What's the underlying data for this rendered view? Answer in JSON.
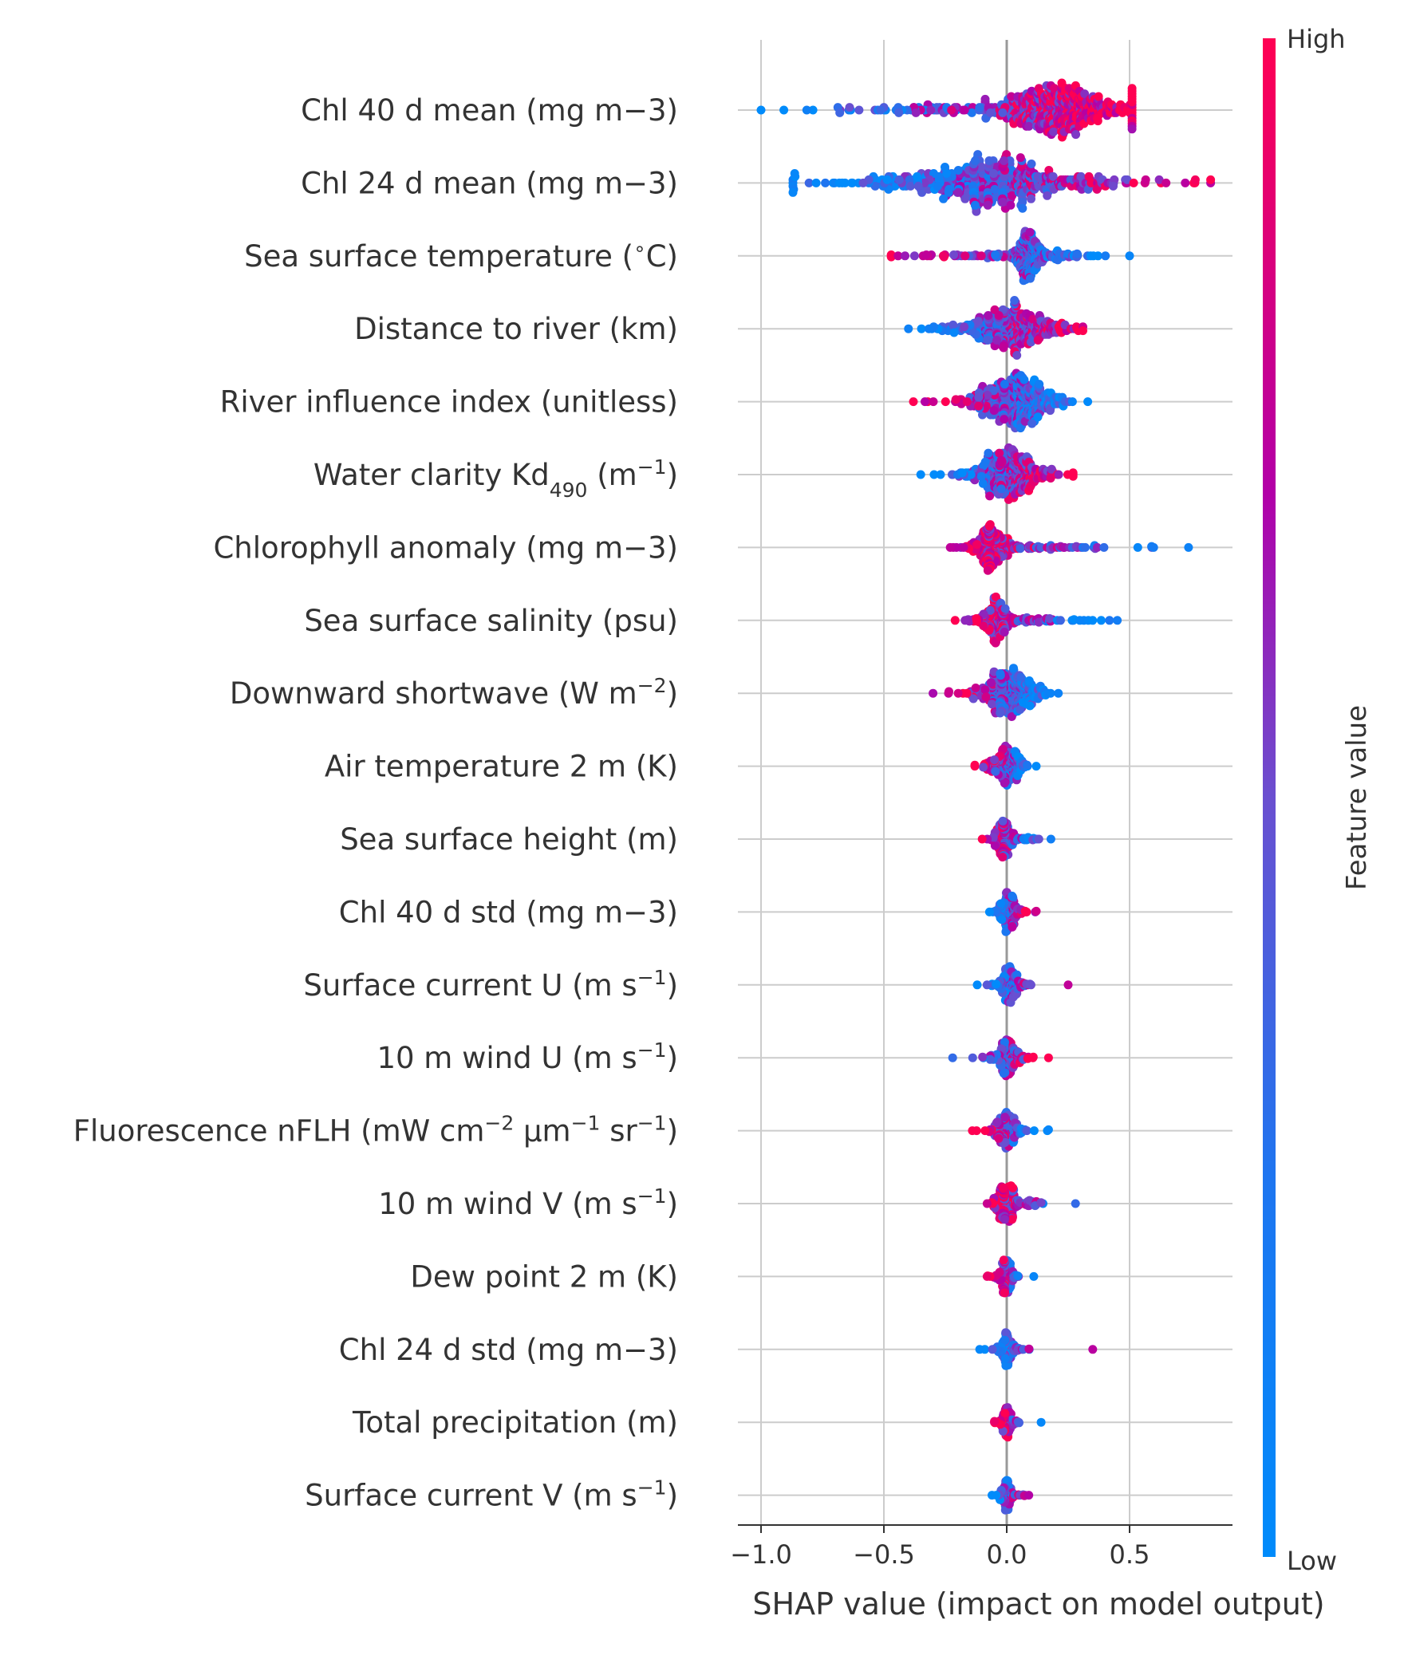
{
  "chart_data": {
    "type": "scatter",
    "subtype": "shap-beeswarm-summary",
    "xlabel": "SHAP value (impact on model output)",
    "xlim": [
      -1.1,
      0.92
    ],
    "xticks": [
      {
        "value": -1.0,
        "label": "−1.0"
      },
      {
        "value": -0.5,
        "label": "−0.5"
      },
      {
        "value": 0.0,
        "label": "0.0"
      },
      {
        "value": 0.5,
        "label": "0.5"
      }
    ],
    "grid": "vertical gridlines",
    "colorbar": {
      "title": "Feature value",
      "high_label": "High",
      "low_label": "Low",
      "low_color": "#008bfb",
      "high_color": "#ff0052"
    },
    "features": [
      {
        "label_parts": [
          {
            "t": "Chl 40 d mean (mg m−3)"
          }
        ],
        "min": -1.0,
        "max": 0.51,
        "peak": 0.18,
        "spread": 0.11,
        "neg_tail": 0.45,
        "pos_tail": 0.22,
        "low_side": "negative",
        "n": 520,
        "halfwidth": 0.85
      },
      {
        "label_parts": [
          {
            "t": "Chl 24 d mean (mg m−3)"
          }
        ],
        "min": -0.87,
        "max": 0.83,
        "peak": -0.07,
        "spread": 0.16,
        "neg_tail": 0.35,
        "pos_tail": 0.4,
        "low_side": "negative",
        "n": 520,
        "halfwidth": 0.9
      },
      {
        "label_parts": [
          {
            "t": "Sea surface temperature ("
          },
          {
            "t": "∘",
            "sup": true
          },
          {
            "t": "C)"
          }
        ],
        "min": -0.47,
        "max": 0.5,
        "peak": 0.09,
        "spread": 0.03,
        "neg_tail": 0.25,
        "pos_tail": 0.12,
        "low_side": "positive",
        "n": 380,
        "halfwidth": 0.75
      },
      {
        "label_parts": [
          {
            "t": "Distance to river (km)"
          }
        ],
        "min": -0.4,
        "max": 0.31,
        "peak": 0.02,
        "spread": 0.1,
        "neg_tail": 0.15,
        "pos_tail": 0.12,
        "low_side": "negative",
        "n": 430,
        "halfwidth": 0.85
      },
      {
        "label_parts": [
          {
            "t": "River influence index (unitless)"
          }
        ],
        "min": -0.38,
        "max": 0.33,
        "peak": 0.03,
        "spread": 0.08,
        "neg_tail": 0.13,
        "pos_tail": 0.1,
        "low_side": "positive",
        "n": 420,
        "halfwidth": 0.85
      },
      {
        "label_parts": [
          {
            "t": "Water clarity Kd"
          },
          {
            "t": "490",
            "sub": true
          },
          {
            "t": " (m"
          },
          {
            "t": "−1",
            "sup": true
          },
          {
            "t": ")"
          }
        ],
        "min": -0.35,
        "max": 0.27,
        "peak": 0.0,
        "spread": 0.07,
        "neg_tail": 0.12,
        "pos_tail": 0.1,
        "low_side": "negative",
        "n": 420,
        "halfwidth": 0.8
      },
      {
        "label_parts": [
          {
            "t": "Chlorophyll anomaly (mg m−3)"
          }
        ],
        "min": -0.23,
        "max": 0.74,
        "peak": -0.05,
        "spread": 0.04,
        "neg_tail": 0.06,
        "pos_tail": 0.28,
        "low_side": "positive",
        "n": 380,
        "halfwidth": 0.7
      },
      {
        "label_parts": [
          {
            "t": "Sea surface salinity (psu)"
          }
        ],
        "min": -0.21,
        "max": 0.45,
        "peak": -0.04,
        "spread": 0.03,
        "neg_tail": 0.05,
        "pos_tail": 0.18,
        "low_side": "positive",
        "n": 340,
        "halfwidth": 0.7
      },
      {
        "label_parts": [
          {
            "t": "Downward shortwave (W m"
          },
          {
            "t": "−2",
            "sup": true
          },
          {
            "t": ")"
          }
        ],
        "min": -0.3,
        "max": 0.21,
        "peak": 0.01,
        "spread": 0.06,
        "neg_tail": 0.1,
        "pos_tail": 0.07,
        "low_side": "positive",
        "n": 340,
        "halfwidth": 0.75
      },
      {
        "label_parts": [
          {
            "t": "Air temperature 2 m (K)"
          }
        ],
        "min": -0.13,
        "max": 0.12,
        "peak": 0.0,
        "spread": 0.03,
        "neg_tail": 0.05,
        "pos_tail": 0.04,
        "low_side": "positive",
        "n": 260,
        "halfwidth": 0.6
      },
      {
        "label_parts": [
          {
            "t": "Sea surface height (m)"
          }
        ],
        "min": -0.1,
        "max": 0.18,
        "peak": -0.01,
        "spread": 0.02,
        "neg_tail": 0.03,
        "pos_tail": 0.06,
        "low_side": "positive",
        "n": 230,
        "halfwidth": 0.55
      },
      {
        "label_parts": [
          {
            "t": "Chl 40 d std (mg m−3)"
          }
        ],
        "min": -0.07,
        "max": 0.12,
        "peak": 0.01,
        "spread": 0.02,
        "neg_tail": 0.02,
        "pos_tail": 0.04,
        "low_side": "negative",
        "n": 220,
        "halfwidth": 0.6
      },
      {
        "label_parts": [
          {
            "t": "Surface current U (m s"
          },
          {
            "t": "−1",
            "sup": true
          },
          {
            "t": ")"
          }
        ],
        "min": -0.12,
        "max": 0.25,
        "peak": 0.01,
        "spread": 0.02,
        "neg_tail": 0.03,
        "pos_tail": 0.04,
        "low_side": "negative",
        "n": 220,
        "halfwidth": 0.55
      },
      {
        "label_parts": [
          {
            "t": "10 m wind U (m s"
          },
          {
            "t": "−1",
            "sup": true
          },
          {
            "t": ")"
          }
        ],
        "min": -0.22,
        "max": 0.17,
        "peak": 0.0,
        "spread": 0.02,
        "neg_tail": 0.06,
        "pos_tail": 0.05,
        "low_side": "negative",
        "n": 240,
        "halfwidth": 0.55
      },
      {
        "label_parts": [
          {
            "t": "Fluorescence nFLH (mW cm"
          },
          {
            "t": "−2",
            "sup": true
          },
          {
            "t": " µm"
          },
          {
            "t": "−1",
            "sup": true
          },
          {
            "t": " sr"
          },
          {
            "t": "−1",
            "sup": true
          },
          {
            "t": ")"
          }
        ],
        "min": -0.14,
        "max": 0.17,
        "peak": 0.0,
        "spread": 0.02,
        "neg_tail": 0.04,
        "pos_tail": 0.05,
        "low_side": "positive",
        "n": 220,
        "halfwidth": 0.55
      },
      {
        "label_parts": [
          {
            "t": "10 m wind V (m s"
          },
          {
            "t": "−1",
            "sup": true
          },
          {
            "t": ")"
          }
        ],
        "min": -0.08,
        "max": 0.28,
        "peak": 0.0,
        "spread": 0.02,
        "neg_tail": 0.03,
        "pos_tail": 0.08,
        "low_side": "positive",
        "n": 220,
        "halfwidth": 0.55
      },
      {
        "label_parts": [
          {
            "t": "Dew point 2 m (K)"
          }
        ],
        "min": -0.08,
        "max": 0.11,
        "peak": 0.0,
        "spread": 0.015,
        "neg_tail": 0.03,
        "pos_tail": 0.03,
        "low_side": "positive",
        "n": 200,
        "halfwidth": 0.5
      },
      {
        "label_parts": [
          {
            "t": "Chl 24 d std (mg m−3)"
          }
        ],
        "min": -0.11,
        "max": 0.35,
        "peak": 0.0,
        "spread": 0.015,
        "neg_tail": 0.03,
        "pos_tail": 0.04,
        "low_side": "negative",
        "n": 200,
        "halfwidth": 0.5
      },
      {
        "label_parts": [
          {
            "t": "Total precipitation (m)"
          }
        ],
        "min": -0.05,
        "max": 0.14,
        "peak": 0.0,
        "spread": 0.01,
        "neg_tail": 0.02,
        "pos_tail": 0.03,
        "low_side": "positive",
        "n": 170,
        "halfwidth": 0.45
      },
      {
        "label_parts": [
          {
            "t": "Surface current V (m s"
          },
          {
            "t": "−1",
            "sup": true
          },
          {
            "t": ")"
          }
        ],
        "min": -0.06,
        "max": 0.09,
        "peak": 0.0,
        "spread": 0.01,
        "neg_tail": 0.02,
        "pos_tail": 0.03,
        "low_side": "negative",
        "n": 170,
        "halfwidth": 0.45
      }
    ]
  }
}
